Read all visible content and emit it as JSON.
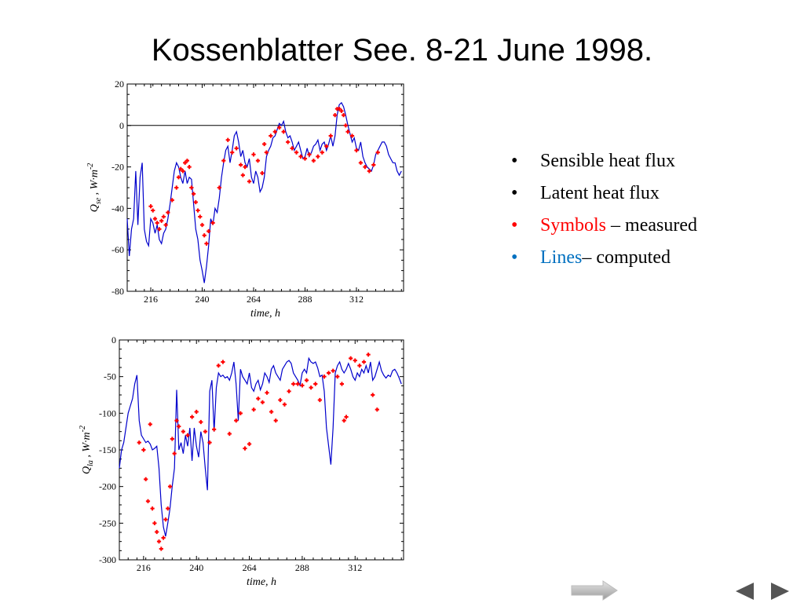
{
  "title": "Kossenblatter See. 8-21 June 1998.",
  "colors": {
    "measured": "#ff0000",
    "computed": "#0000cc",
    "lines_label": "#0070c0",
    "text": "#000000"
  },
  "legend": [
    {
      "label": "Sensible heat flux",
      "color": "#000000"
    },
    {
      "label": "Latent heat flux",
      "color": "#000000"
    },
    {
      "label": "Symbols",
      "suffix": " – measured",
      "color": "#ff0000"
    },
    {
      "label": "Lines",
      "suffix": "– computed",
      "color": "#0070c0"
    }
  ],
  "nav": {
    "forward": "forward-arrow-icon",
    "prev": "previous-triangle-icon",
    "next": "next-triangle-icon"
  },
  "chart_data": [
    {
      "type": "line",
      "ylabel_main": "Q",
      "ylabel_sub": "se",
      "ylabel_units": " , W·m",
      "ylabel_exp": "-2",
      "xlabel": "time, h",
      "xlim": [
        205,
        334
      ],
      "ylim": [
        -80,
        20
      ],
      "xticks": [
        216,
        240,
        264,
        288,
        312
      ],
      "xtick_labels": [
        "216",
        "240",
        "264",
        "288",
        "312"
      ],
      "yticks": [
        20,
        0,
        -20,
        -40,
        -60,
        -80
      ],
      "ytick_labels": [
        "20",
        "0",
        "-20",
        "-40",
        "-60",
        "-80"
      ],
      "zero_line": 0,
      "series": [
        {
          "role": "computed",
          "marker": "line",
          "x": [
            205,
            206,
            207,
            208,
            209,
            210,
            211,
            212,
            213,
            214,
            215,
            216,
            217,
            218,
            219,
            220,
            221,
            222,
            223,
            224,
            225,
            226,
            227,
            228,
            229,
            230,
            231,
            232,
            233,
            234,
            235,
            236,
            237,
            238,
            239,
            240,
            241,
            242,
            243,
            244,
            245,
            246,
            247,
            248,
            249,
            250,
            251,
            252,
            253,
            254,
            255,
            256,
            257,
            258,
            259,
            260,
            261,
            262,
            263,
            264,
            265,
            266,
            267,
            268,
            269,
            270,
            271,
            272,
            273,
            274,
            275,
            276,
            277,
            278,
            279,
            280,
            281,
            282,
            283,
            284,
            285,
            286,
            287,
            288,
            289,
            290,
            291,
            292,
            293,
            294,
            295,
            296,
            297,
            298,
            299,
            300,
            301,
            302,
            303,
            304,
            305,
            306,
            307,
            308,
            309,
            310,
            311,
            312,
            313,
            314,
            315,
            316,
            317,
            318,
            319,
            320,
            321,
            322,
            323,
            324,
            325,
            326,
            327,
            328,
            329,
            330,
            331,
            332,
            333
          ],
          "y": [
            -45,
            -63,
            -50,
            -45,
            -22,
            -48,
            -25,
            -18,
            -50,
            -56,
            -58,
            -45,
            -47,
            -52,
            -48,
            -55,
            -57,
            -52,
            -50,
            -45,
            -38,
            -30,
            -22,
            -18,
            -20,
            -25,
            -28,
            -22,
            -28,
            -25,
            -26,
            -38,
            -50,
            -55,
            -65,
            -70,
            -76,
            -68,
            -58,
            -45,
            -48,
            -40,
            -42,
            -35,
            -25,
            -18,
            -12,
            -10,
            -18,
            -12,
            -5,
            -3,
            -8,
            -15,
            -12,
            -18,
            -20,
            -16,
            -25,
            -28,
            -22,
            -25,
            -32,
            -30,
            -25,
            -15,
            -12,
            -10,
            -6,
            -5,
            -2,
            1,
            0,
            2,
            -3,
            -6,
            -5,
            -8,
            -12,
            -10,
            -8,
            -12,
            -16,
            -15,
            -11,
            -15,
            -13,
            -10,
            -9,
            -7,
            -12,
            -9,
            -8,
            -12,
            -9,
            -5,
            -10,
            -5,
            5,
            10,
            11,
            9,
            5,
            0,
            -4,
            -8,
            -6,
            -11,
            -12,
            -8,
            -15,
            -18,
            -20,
            -21,
            -22,
            -19,
            -14,
            -12,
            -10,
            -8,
            -8,
            -10,
            -14,
            -16,
            -18,
            -18,
            -22,
            -24,
            -22
          ]
        },
        {
          "role": "measured",
          "marker": "cross",
          "x": [
            216,
            217,
            218,
            219,
            220,
            221,
            222,
            223,
            224,
            226,
            228,
            229,
            230,
            231,
            232,
            233,
            234,
            235,
            236,
            237,
            238,
            239,
            240,
            241,
            242,
            243,
            245,
            248,
            250,
            252,
            254,
            256,
            258,
            259,
            260,
            262,
            264,
            266,
            268,
            269,
            270,
            272,
            274,
            276,
            278,
            280,
            282,
            284,
            286,
            288,
            290,
            292,
            294,
            296,
            298,
            300,
            302,
            303,
            304,
            305,
            306,
            307,
            308,
            310,
            312,
            314,
            316,
            318,
            320,
            322
          ],
          "y": [
            -39,
            -41,
            -45,
            -47,
            -50,
            -46,
            -44,
            -48,
            -42,
            -36,
            -30,
            -25,
            -21,
            -22,
            -18,
            -17,
            -20,
            -30,
            -33,
            -37,
            -41,
            -44,
            -48,
            -53,
            -57,
            -51,
            -47,
            -30,
            -17,
            -7,
            -13,
            -11,
            -19,
            -24,
            -20,
            -27,
            -14,
            -17,
            -23,
            -9,
            -13,
            -5,
            -3,
            -1,
            -3,
            -8,
            -11,
            -13,
            -15,
            -16,
            -14,
            -17,
            -15,
            -13,
            -10,
            -5,
            5,
            8,
            8,
            7,
            5,
            0,
            -3,
            -5,
            -12,
            -18,
            -20,
            -22,
            -19,
            -13
          ]
        }
      ]
    },
    {
      "type": "line",
      "ylabel_main": "Q",
      "ylabel_sub": "la",
      "ylabel_units": " , W·m",
      "ylabel_exp": "-2",
      "xlabel": "time, h",
      "xlim": [
        205,
        334
      ],
      "ylim": [
        -300,
        0
      ],
      "xticks": [
        216,
        240,
        264,
        288,
        312
      ],
      "xtick_labels": [
        "216",
        "240",
        "264",
        "288",
        "312"
      ],
      "yticks": [
        0,
        -50,
        -100,
        -150,
        -200,
        -250,
        -300
      ],
      "ytick_labels": [
        "0",
        "-50",
        "-100",
        "-150",
        "-200",
        "-250",
        "-300"
      ],
      "series": [
        {
          "role": "computed",
          "marker": "line",
          "x": [
            205,
            206,
            207,
            208,
            209,
            210,
            211,
            212,
            213,
            214,
            215,
            216,
            217,
            218,
            219,
            220,
            221,
            222,
            223,
            224,
            225,
            226,
            227,
            228,
            229,
            230,
            231,
            232,
            233,
            234,
            235,
            236,
            237,
            238,
            239,
            240,
            241,
            242,
            243,
            244,
            245,
            246,
            247,
            248,
            249,
            250,
            251,
            252,
            253,
            254,
            255,
            256,
            257,
            258,
            259,
            260,
            261,
            262,
            263,
            264,
            265,
            266,
            267,
            268,
            269,
            270,
            271,
            272,
            273,
            274,
            275,
            276,
            277,
            278,
            279,
            280,
            281,
            282,
            283,
            284,
            285,
            286,
            287,
            288,
            289,
            290,
            291,
            292,
            293,
            294,
            295,
            296,
            297,
            298,
            299,
            300,
            301,
            302,
            303,
            304,
            305,
            306,
            307,
            308,
            309,
            310,
            311,
            312,
            313,
            314,
            315,
            316,
            317,
            318,
            319,
            320,
            321,
            322,
            323,
            324,
            325,
            326,
            327,
            328,
            329,
            330,
            331,
            332,
            333
          ],
          "y": [
            -175,
            -150,
            -140,
            -120,
            -100,
            -90,
            -80,
            -60,
            -48,
            -110,
            -130,
            -135,
            -140,
            -138,
            -142,
            -150,
            -148,
            -145,
            -175,
            -225,
            -255,
            -268,
            -250,
            -230,
            -200,
            -175,
            -68,
            -150,
            -140,
            -155,
            -130,
            -145,
            -120,
            -165,
            -120,
            -145,
            -160,
            -125,
            -140,
            -175,
            -205,
            -70,
            -55,
            -125,
            -65,
            -45,
            -50,
            -48,
            -52,
            -50,
            -55,
            -45,
            -30,
            -60,
            -110,
            -40,
            -50,
            -55,
            -60,
            -45,
            -65,
            -70,
            -60,
            -55,
            -68,
            -60,
            -45,
            -50,
            -58,
            -40,
            -35,
            -45,
            -50,
            -55,
            -40,
            -35,
            -30,
            -28,
            -32,
            -45,
            -50,
            -55,
            -62,
            -45,
            -40,
            -45,
            -25,
            -30,
            -32,
            -30,
            -38,
            -50,
            -48,
            -70,
            -120,
            -145,
            -170,
            -120,
            -45,
            -35,
            -30,
            -40,
            -45,
            -40,
            -32,
            -40,
            -50,
            -55,
            -45,
            -50,
            -40,
            -45,
            -35,
            -45,
            -30,
            -55,
            -50,
            -40,
            -30,
            -42,
            -48,
            -52,
            -48,
            -50,
            -42,
            -40,
            -45,
            -52,
            -60
          ]
        },
        {
          "role": "measured",
          "marker": "cross",
          "x": [
            214,
            216,
            217,
            218,
            219,
            220,
            221,
            222,
            223,
            224,
            225,
            226,
            227,
            228,
            229,
            230,
            231,
            232,
            234,
            236,
            238,
            240,
            242,
            244,
            246,
            248,
            250,
            252,
            255,
            258,
            260,
            262,
            264,
            266,
            268,
            270,
            272,
            274,
            276,
            278,
            280,
            282,
            284,
            286,
            288,
            290,
            292,
            294,
            296,
            298,
            300,
            302,
            304,
            306,
            307,
            308,
            310,
            312,
            314,
            316,
            318,
            320,
            322
          ],
          "y": [
            -140,
            -150,
            -190,
            -220,
            -115,
            -230,
            -250,
            -262,
            -275,
            -285,
            -270,
            -245,
            -230,
            -200,
            -135,
            -155,
            -110,
            -118,
            -125,
            -130,
            -105,
            -98,
            -112,
            -125,
            -140,
            -122,
            -35,
            -30,
            -128,
            -110,
            -100,
            -148,
            -142,
            -95,
            -80,
            -85,
            -72,
            -98,
            -110,
            -82,
            -88,
            -70,
            -60,
            -60,
            -62,
            -55,
            -65,
            -60,
            -82,
            -50,
            -45,
            -42,
            -50,
            -60,
            -110,
            -105,
            -25,
            -28,
            -35,
            -30,
            -20,
            -75,
            -95
          ]
        }
      ]
    }
  ]
}
